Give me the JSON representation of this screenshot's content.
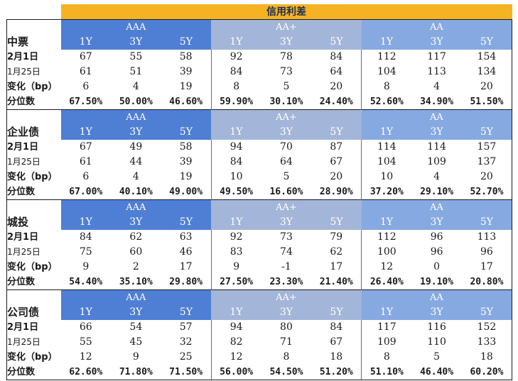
{
  "title": "信用利差",
  "groups": [
    "AAA",
    "AA+",
    "AA"
  ],
  "tenors": [
    "1Y",
    "3Y",
    "5Y"
  ],
  "row_labels": {
    "current": "2月1日",
    "previous": "1月25日",
    "change": "变化（bp）",
    "percentile": "分位数"
  },
  "sections": [
    {
      "name": "中票",
      "current": [
        "67",
        "55",
        "58",
        "92",
        "78",
        "84",
        "112",
        "117",
        "154"
      ],
      "previous": [
        "61",
        "51",
        "39",
        "84",
        "73",
        "64",
        "104",
        "113",
        "134"
      ],
      "change": [
        "6",
        "4",
        "19",
        "8",
        "5",
        "20",
        "8",
        "4",
        "20"
      ],
      "percentile": [
        "67.50%",
        "50.00%",
        "46.60%",
        "59.90%",
        "30.10%",
        "24.40%",
        "52.60%",
        "34.90%",
        "51.50%"
      ]
    },
    {
      "name": "企业债",
      "current": [
        "67",
        "49",
        "58",
        "94",
        "70",
        "87",
        "114",
        "114",
        "157"
      ],
      "previous": [
        "61",
        "44",
        "39",
        "84",
        "64",
        "67",
        "104",
        "109",
        "137"
      ],
      "change": [
        "6",
        "4",
        "19",
        "10",
        "5",
        "20",
        "10",
        "4",
        "20"
      ],
      "percentile": [
        "67.00%",
        "40.10%",
        "49.00%",
        "49.50%",
        "16.60%",
        "28.90%",
        "37.20%",
        "29.10%",
        "52.70%"
      ]
    },
    {
      "name": "城投",
      "current": [
        "84",
        "62",
        "63",
        "92",
        "73",
        "79",
        "112",
        "96",
        "113"
      ],
      "previous": [
        "75",
        "60",
        "46",
        "83",
        "74",
        "62",
        "100",
        "96",
        "96"
      ],
      "change": [
        "9",
        "2",
        "17",
        "9",
        "-1",
        "17",
        "12",
        "0",
        "17"
      ],
      "percentile": [
        "54.40%",
        "35.10%",
        "29.80%",
        "27.50%",
        "23.30%",
        "21.40%",
        "26.40%",
        "19.10%",
        "20.80%"
      ]
    },
    {
      "name": "公司债",
      "current": [
        "66",
        "54",
        "57",
        "94",
        "80",
        "84",
        "117",
        "116",
        "152"
      ],
      "previous": [
        "55",
        "45",
        "32",
        "82",
        "71",
        "67",
        "109",
        "110",
        "133"
      ],
      "change": [
        "12",
        "9",
        "25",
        "12",
        "8",
        "18",
        "8",
        "5",
        "18"
      ],
      "percentile": [
        "62.60%",
        "71.80%",
        "71.50%",
        "56.00%",
        "54.50%",
        "51.20%",
        "51.10%",
        "46.40%",
        "60.20%"
      ]
    }
  ]
}
